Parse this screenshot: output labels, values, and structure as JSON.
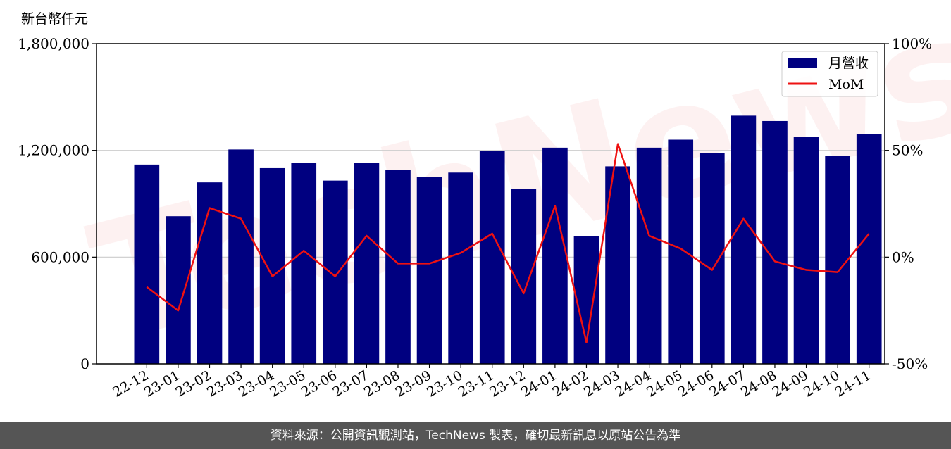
{
  "chart_data": {
    "type": "bar",
    "unit_label": "新台幣仟元",
    "categories": [
      "22-12",
      "23-01",
      "23-02",
      "23-03",
      "23-04",
      "23-05",
      "23-06",
      "23-07",
      "23-08",
      "23-09",
      "23-10",
      "23-11",
      "23-12",
      "24-01",
      "24-02",
      "24-03",
      "24-04",
      "24-05",
      "24-06",
      "24-07",
      "24-08",
      "24-09",
      "24-10",
      "24-11"
    ],
    "series": [
      {
        "name": "月營收",
        "axis": "left",
        "kind": "bar",
        "color": "#000080",
        "values": [
          1120000,
          830000,
          1020000,
          1205000,
          1100000,
          1130000,
          1030000,
          1130000,
          1090000,
          1050000,
          1075000,
          1195000,
          985000,
          1215000,
          720000,
          1110000,
          1215000,
          1260000,
          1185000,
          1395000,
          1365000,
          1275000,
          1170000,
          1290000
        ]
      },
      {
        "name": "MoM",
        "axis": "right",
        "kind": "line",
        "color": "#ee1111",
        "values": [
          -14,
          -25,
          23,
          18,
          -9,
          3,
          -9,
          10,
          -3,
          -3,
          2,
          11,
          -17,
          24,
          -40,
          53,
          10,
          4,
          -6,
          18,
          -2,
          -6,
          -7,
          11
        ]
      }
    ],
    "ylim_left": [
      0,
      1800000
    ],
    "yticks_left": [
      "0",
      "600,000",
      "1,200,000",
      "1,800,000"
    ],
    "ylim_right": [
      -50,
      100
    ],
    "yticks_right": [
      "-50%",
      "0%",
      "50%",
      "100%"
    ],
    "grid": "horizontal",
    "legend_position": "top-right",
    "watermark": "TechNews"
  },
  "footer": {
    "text": "資料來源：公開資訊觀測站，TechNews 製表，確切最新訊息以原站公告為準"
  }
}
